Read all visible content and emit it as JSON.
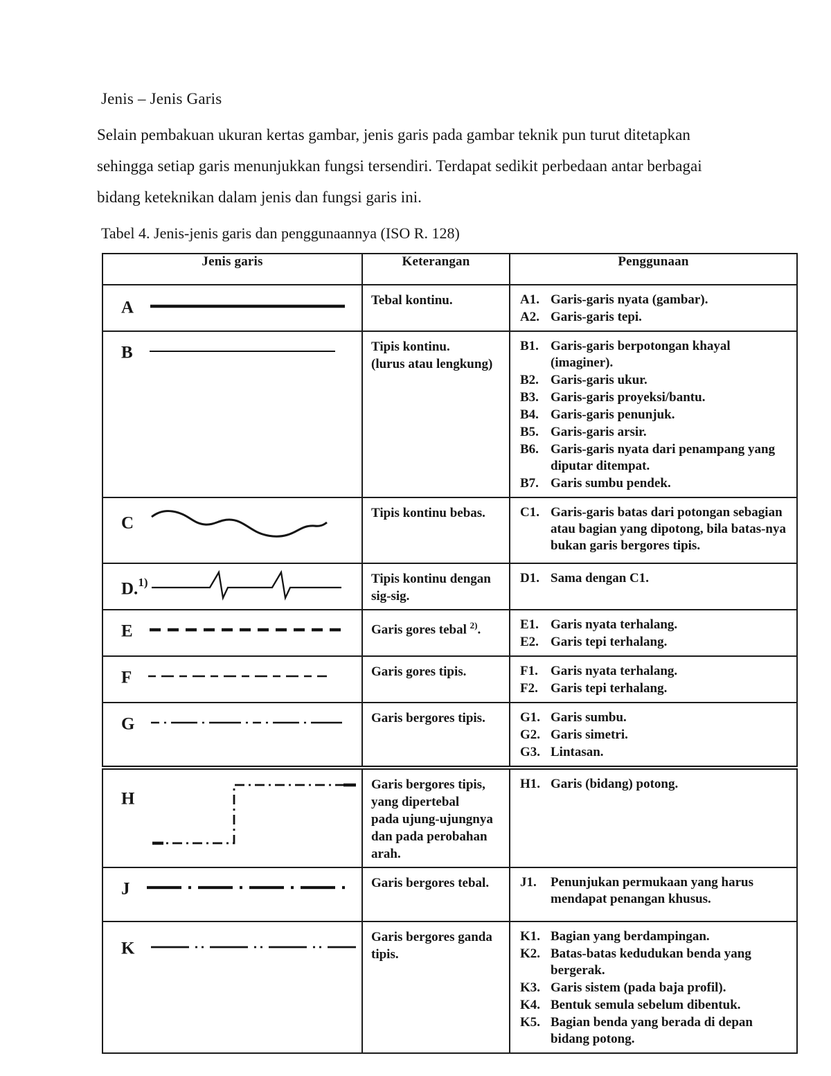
{
  "page": {
    "title": "Jenis – Jenis Garis",
    "paragraph_lines": [
      "Selain pembakuan ukuran kertas gambar, jenis garis pada gambar teknik pun turut ditetapkan",
      "sehingga setiap garis menunjukkan fungsi tersendiri. Terdapat sedikit perbedaan antar berbagai",
      "bidang keteknikan dalam jenis dan fungsi garis ini."
    ],
    "table_caption": "Tabel 4. Jenis-jenis garis dan penggunaannya (ISO R. 128)"
  },
  "colors": {
    "ink": "#161616",
    "line": "#141414"
  },
  "table": {
    "headers": [
      "Jenis garis",
      "Keterangan",
      "Penggunaan"
    ],
    "rows": [
      {
        "label": "A",
        "label_sup": "",
        "line_type": "thick-solid",
        "ket_lines": [
          "Tebal kontinu."
        ],
        "ket_sup": "",
        "ket_sup_after": "",
        "uses": [
          {
            "code": "A1.",
            "text": "Garis-garis nyata (gambar)."
          },
          {
            "code": "A2.",
            "text": "Garis-garis tepi."
          }
        ]
      },
      {
        "label": "B",
        "label_sup": "",
        "line_type": "thin-solid",
        "ket_lines": [
          "Tipis kontinu.",
          "(lurus atau lengkung)"
        ],
        "ket_sup": "",
        "ket_sup_after": "",
        "uses": [
          {
            "code": "B1.",
            "text": "Garis-garis berpotongan khayal (imaginer)."
          },
          {
            "code": "B2.",
            "text": "Garis-garis ukur."
          },
          {
            "code": "B3.",
            "text": "Garis-garis proyeksi/bantu."
          },
          {
            "code": "B4.",
            "text": "Garis-garis penunjuk."
          },
          {
            "code": "B5.",
            "text": "Garis-garis arsir."
          },
          {
            "code": "B6.",
            "text": "Garis-garis nyata dari penampang yang diputar ditempat."
          },
          {
            "code": "B7.",
            "text": "Garis sumbu pendek."
          }
        ]
      },
      {
        "label": "C",
        "label_sup": "",
        "line_type": "freehand",
        "ket_lines": [
          "Tipis kontinu bebas."
        ],
        "ket_sup": "",
        "ket_sup_after": "",
        "uses": [
          {
            "code": "C1.",
            "text": "Garis-garis batas dari potongan sebagian atau bagian yang dipotong, bila batas-nya bukan garis bergores tipis."
          }
        ]
      },
      {
        "label": "D.",
        "label_sup": "1)",
        "line_type": "zigzag",
        "ket_lines": [
          "Tipis kontinu dengan",
          "sig-sig."
        ],
        "ket_sup": "",
        "ket_sup_after": "",
        "uses": [
          {
            "code": "D1.",
            "text": "Sama dengan C1."
          }
        ]
      },
      {
        "label": "E",
        "label_sup": "",
        "line_type": "thick-dashed",
        "ket_lines": [
          "Garis gores tebal"
        ],
        "ket_sup": "2)",
        "ket_sup_after": ".",
        "uses": [
          {
            "code": "E1.",
            "text": "Garis nyata terhalang."
          },
          {
            "code": "E2.",
            "text": "Garis tepi terhalang."
          }
        ]
      },
      {
        "label": "F",
        "label_sup": "",
        "line_type": "thin-dashed",
        "ket_lines": [
          "Garis gores tipis."
        ],
        "ket_sup": "",
        "ket_sup_after": "",
        "uses": [
          {
            "code": "F1.",
            "text": "Garis nyata terhalang."
          },
          {
            "code": "F2.",
            "text": "Garis tepi terhalang."
          }
        ]
      },
      {
        "label": "G",
        "label_sup": "",
        "line_type": "thin-dash-dot",
        "ket_lines": [
          "Garis bergores tipis."
        ],
        "ket_sup": "",
        "ket_sup_after": "",
        "uses": [
          {
            "code": "G1.",
            "text": "Garis sumbu."
          },
          {
            "code": "G2.",
            "text": "Garis simetri."
          },
          {
            "code": "G3.",
            "text": "Lintasan."
          }
        ]
      },
      {
        "label": "H",
        "label_sup": "",
        "line_type": "dash-dot-step",
        "ket_lines": [
          "Garis bergores tipis,",
          "yang dipertebal",
          "pada ujung-ujungnya",
          "dan pada perobahan",
          "arah."
        ],
        "ket_sup": "",
        "ket_sup_after": "",
        "uses": [
          {
            "code": "H1.",
            "text": "Garis (bidang) potong."
          }
        ]
      },
      {
        "label": "J",
        "label_sup": "",
        "line_type": "thick-dash-dot",
        "ket_lines": [
          "Garis bergores tebal."
        ],
        "ket_sup": "",
        "ket_sup_after": "",
        "uses": [
          {
            "code": "J1.",
            "text": "Penunjukan permukaan yang harus mendapat penangan khusus."
          }
        ]
      },
      {
        "label": "K",
        "label_sup": "",
        "line_type": "thin-dash-dot-dot",
        "ket_lines": [
          "Garis bergores ganda",
          "tipis."
        ],
        "ket_sup": "",
        "ket_sup_after": "",
        "uses": [
          {
            "code": "K1.",
            "text": "Bagian yang berdampingan."
          },
          {
            "code": "K2.",
            "text": "Batas-batas kedudukan benda yang bergerak."
          },
          {
            "code": "K3.",
            "text": "Garis sistem (pada baja profil)."
          },
          {
            "code": "K4.",
            "text": "Bentuk semula sebelum dibentuk."
          },
          {
            "code": "K5.",
            "text": "Bagian benda yang berada di depan bidang potong."
          }
        ]
      }
    ]
  }
}
